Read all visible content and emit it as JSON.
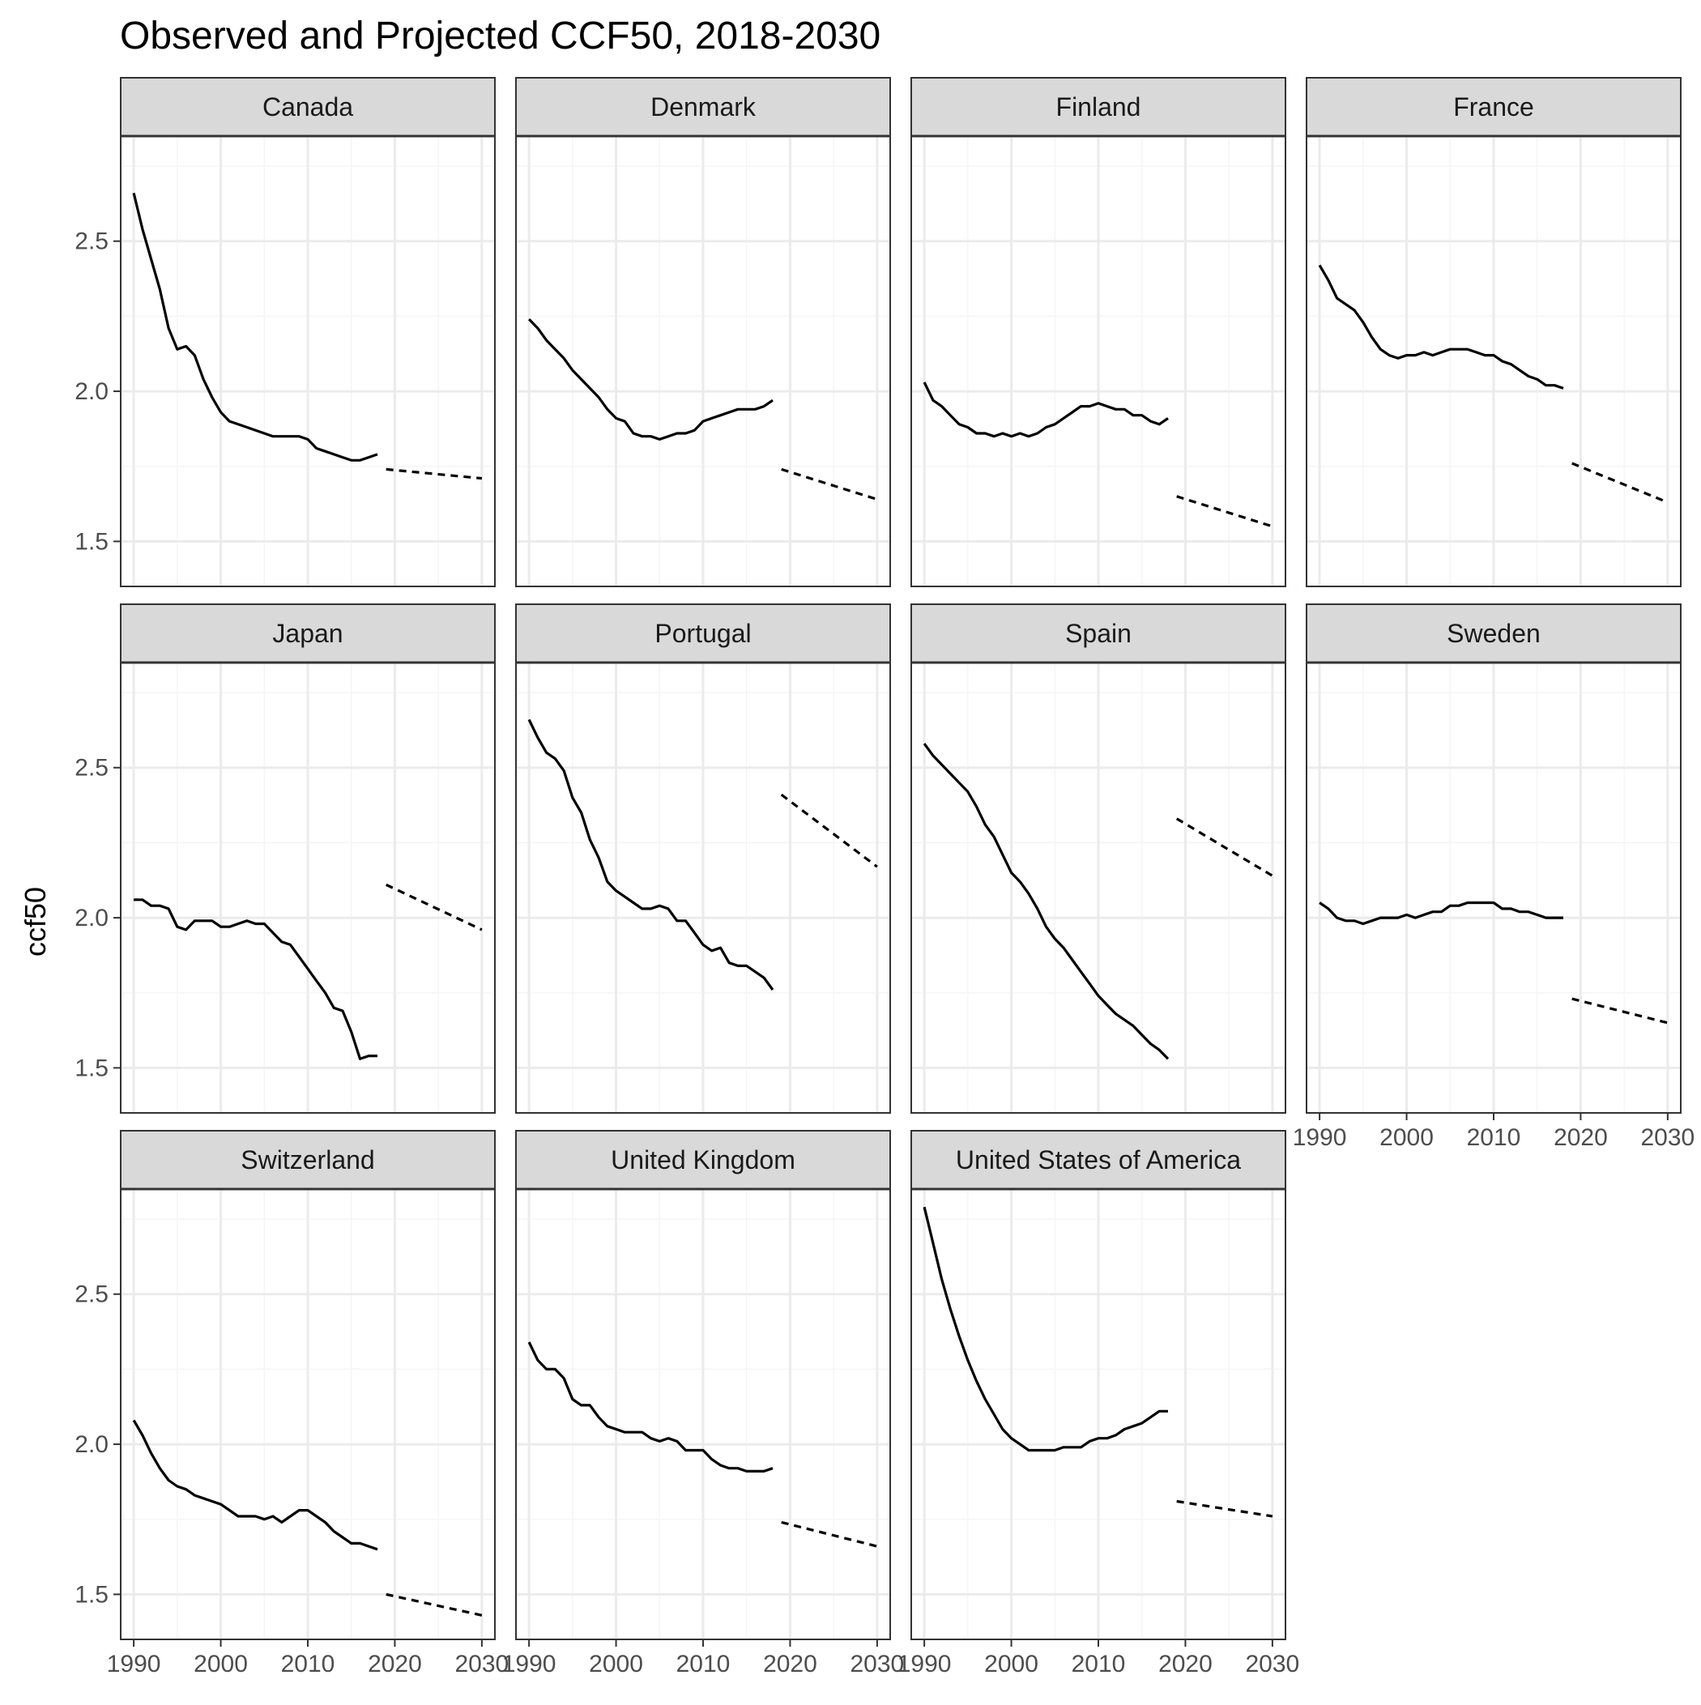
{
  "chart_data": {
    "type": "line",
    "title": "Observed and Projected CCF50, 2018-2030",
    "xlabel": "",
    "ylabel": "ccf50",
    "xlim": [
      1988.5,
      2031.5
    ],
    "ylim": [
      1.35,
      2.85
    ],
    "x_ticks": [
      1990,
      2000,
      2010,
      2020,
      2030
    ],
    "x_tick_labels": [
      "1990",
      "2000",
      "2010",
      "2020",
      "2030"
    ],
    "y_ticks": [
      1.5,
      2.0,
      2.5
    ],
    "y_tick_labels": [
      "1.5",
      "2.0",
      "2.5"
    ],
    "grid": true,
    "facet_layout": {
      "columns": 4,
      "rows": 3
    },
    "series_styles": {
      "observed": "solid",
      "projected": "dashed"
    },
    "colors": {
      "line": "#000000",
      "strip_fill": "#d9d9d9",
      "panel_border": "#333333",
      "grid_major": "#ebebeb",
      "grid_minor": "#f5f5f5"
    },
    "panels": [
      {
        "name": "Canada",
        "observed": {
          "x": [
            1990,
            1991,
            1992,
            1993,
            1994,
            1995,
            1996,
            1997,
            1998,
            1999,
            2000,
            2001,
            2002,
            2003,
            2004,
            2005,
            2006,
            2007,
            2008,
            2009,
            2010,
            2011,
            2012,
            2013,
            2014,
            2015,
            2016,
            2017,
            2018
          ],
          "y": [
            2.66,
            2.54,
            2.44,
            2.34,
            2.21,
            2.14,
            2.15,
            2.12,
            2.04,
            1.98,
            1.93,
            1.9,
            1.89,
            1.88,
            1.87,
            1.86,
            1.85,
            1.85,
            1.85,
            1.85,
            1.84,
            1.81,
            1.8,
            1.79,
            1.78,
            1.77,
            1.77,
            1.78,
            1.79
          ]
        },
        "projected": {
          "x": [
            2019,
            2030
          ],
          "y": [
            1.74,
            1.71
          ]
        }
      },
      {
        "name": "Denmark",
        "observed": {
          "x": [
            1990,
            1991,
            1992,
            1993,
            1994,
            1995,
            1996,
            1997,
            1998,
            1999,
            2000,
            2001,
            2002,
            2003,
            2004,
            2005,
            2006,
            2007,
            2008,
            2009,
            2010,
            2011,
            2012,
            2013,
            2014,
            2015,
            2016,
            2017,
            2018
          ],
          "y": [
            2.24,
            2.21,
            2.17,
            2.14,
            2.11,
            2.07,
            2.04,
            2.01,
            1.98,
            1.94,
            1.91,
            1.9,
            1.86,
            1.85,
            1.85,
            1.84,
            1.85,
            1.86,
            1.86,
            1.87,
            1.9,
            1.91,
            1.92,
            1.93,
            1.94,
            1.94,
            1.94,
            1.95,
            1.97
          ]
        },
        "projected": {
          "x": [
            2019,
            2030
          ],
          "y": [
            1.74,
            1.64
          ]
        }
      },
      {
        "name": "Finland",
        "observed": {
          "x": [
            1990,
            1991,
            1992,
            1993,
            1994,
            1995,
            1996,
            1997,
            1998,
            1999,
            2000,
            2001,
            2002,
            2003,
            2004,
            2005,
            2006,
            2007,
            2008,
            2009,
            2010,
            2011,
            2012,
            2013,
            2014,
            2015,
            2016,
            2017,
            2018
          ],
          "y": [
            2.03,
            1.97,
            1.95,
            1.92,
            1.89,
            1.88,
            1.86,
            1.86,
            1.85,
            1.86,
            1.85,
            1.86,
            1.85,
            1.86,
            1.88,
            1.89,
            1.91,
            1.93,
            1.95,
            1.95,
            1.96,
            1.95,
            1.94,
            1.94,
            1.92,
            1.92,
            1.9,
            1.89,
            1.91
          ]
        },
        "projected": {
          "x": [
            2019,
            2030
          ],
          "y": [
            1.65,
            1.55
          ]
        }
      },
      {
        "name": "France",
        "observed": {
          "x": [
            1990,
            1991,
            1992,
            1993,
            1994,
            1995,
            1996,
            1997,
            1998,
            1999,
            2000,
            2001,
            2002,
            2003,
            2004,
            2005,
            2006,
            2007,
            2008,
            2009,
            2010,
            2011,
            2012,
            2013,
            2014,
            2015,
            2016,
            2017,
            2018
          ],
          "y": [
            2.42,
            2.37,
            2.31,
            2.29,
            2.27,
            2.23,
            2.18,
            2.14,
            2.12,
            2.11,
            2.12,
            2.12,
            2.13,
            2.12,
            2.13,
            2.14,
            2.14,
            2.14,
            2.13,
            2.12,
            2.12,
            2.1,
            2.09,
            2.07,
            2.05,
            2.04,
            2.02,
            2.02,
            2.01
          ]
        },
        "projected": {
          "x": [
            2019,
            2030
          ],
          "y": [
            1.76,
            1.63
          ]
        }
      },
      {
        "name": "Japan",
        "observed": {
          "x": [
            1990,
            1991,
            1992,
            1993,
            1994,
            1995,
            1996,
            1997,
            1998,
            1999,
            2000,
            2001,
            2002,
            2003,
            2004,
            2005,
            2006,
            2007,
            2008,
            2009,
            2010,
            2011,
            2012,
            2013,
            2014,
            2015,
            2016,
            2017,
            2018
          ],
          "y": [
            2.06,
            2.06,
            2.04,
            2.04,
            2.03,
            1.97,
            1.96,
            1.99,
            1.99,
            1.99,
            1.97,
            1.97,
            1.98,
            1.99,
            1.98,
            1.98,
            1.95,
            1.92,
            1.91,
            1.87,
            1.83,
            1.79,
            1.75,
            1.7,
            1.69,
            1.62,
            1.53,
            1.54,
            1.54
          ]
        },
        "projected": {
          "x": [
            2019,
            2030
          ],
          "y": [
            2.11,
            1.96
          ]
        }
      },
      {
        "name": "Portugal",
        "observed": {
          "x": [
            1990,
            1991,
            1992,
            1993,
            1994,
            1995,
            1996,
            1997,
            1998,
            1999,
            2000,
            2001,
            2002,
            2003,
            2004,
            2005,
            2006,
            2007,
            2008,
            2009,
            2010,
            2011,
            2012,
            2013,
            2014,
            2015,
            2016,
            2017,
            2018
          ],
          "y": [
            2.66,
            2.6,
            2.55,
            2.53,
            2.49,
            2.4,
            2.35,
            2.26,
            2.2,
            2.12,
            2.09,
            2.07,
            2.05,
            2.03,
            2.03,
            2.04,
            2.03,
            1.99,
            1.99,
            1.95,
            1.91,
            1.89,
            1.9,
            1.85,
            1.84,
            1.84,
            1.82,
            1.8,
            1.76
          ]
        },
        "projected": {
          "x": [
            2019,
            2030
          ],
          "y": [
            2.41,
            2.17
          ]
        }
      },
      {
        "name": "Spain",
        "observed": {
          "x": [
            1990,
            1991,
            1992,
            1993,
            1994,
            1995,
            1996,
            1997,
            1998,
            1999,
            2000,
            2001,
            2002,
            2003,
            2004,
            2005,
            2006,
            2007,
            2008,
            2009,
            2010,
            2011,
            2012,
            2013,
            2014,
            2015,
            2016,
            2017,
            2018
          ],
          "y": [
            2.58,
            2.54,
            2.51,
            2.48,
            2.45,
            2.42,
            2.37,
            2.31,
            2.27,
            2.21,
            2.15,
            2.12,
            2.08,
            2.03,
            1.97,
            1.93,
            1.9,
            1.86,
            1.82,
            1.78,
            1.74,
            1.71,
            1.68,
            1.66,
            1.64,
            1.61,
            1.58,
            1.56,
            1.53
          ]
        },
        "projected": {
          "x": [
            2019,
            2030
          ],
          "y": [
            2.33,
            2.14
          ]
        }
      },
      {
        "name": "Sweden",
        "observed": {
          "x": [
            1990,
            1991,
            1992,
            1993,
            1994,
            1995,
            1996,
            1997,
            1998,
            1999,
            2000,
            2001,
            2002,
            2003,
            2004,
            2005,
            2006,
            2007,
            2008,
            2009,
            2010,
            2011,
            2012,
            2013,
            2014,
            2015,
            2016,
            2017,
            2018
          ],
          "y": [
            2.05,
            2.03,
            2.0,
            1.99,
            1.99,
            1.98,
            1.99,
            2.0,
            2.0,
            2.0,
            2.01,
            2.0,
            2.01,
            2.02,
            2.02,
            2.04,
            2.04,
            2.05,
            2.05,
            2.05,
            2.05,
            2.03,
            2.03,
            2.02,
            2.02,
            2.01,
            2.0,
            2.0,
            2.0
          ]
        },
        "projected": {
          "x": [
            2019,
            2030
          ],
          "y": [
            1.73,
            1.65
          ]
        }
      },
      {
        "name": "Switzerland",
        "observed": {
          "x": [
            1990,
            1991,
            1992,
            1993,
            1994,
            1995,
            1996,
            1997,
            1998,
            1999,
            2000,
            2001,
            2002,
            2003,
            2004,
            2005,
            2006,
            2007,
            2008,
            2009,
            2010,
            2011,
            2012,
            2013,
            2014,
            2015,
            2016,
            2017,
            2018
          ],
          "y": [
            2.08,
            2.03,
            1.97,
            1.92,
            1.88,
            1.86,
            1.85,
            1.83,
            1.82,
            1.81,
            1.8,
            1.78,
            1.76,
            1.76,
            1.76,
            1.75,
            1.76,
            1.74,
            1.76,
            1.78,
            1.78,
            1.76,
            1.74,
            1.71,
            1.69,
            1.67,
            1.67,
            1.66,
            1.65
          ]
        },
        "projected": {
          "x": [
            2019,
            2030
          ],
          "y": [
            1.5,
            1.43
          ]
        }
      },
      {
        "name": "United Kingdom",
        "observed": {
          "x": [
            1990,
            1991,
            1992,
            1993,
            1994,
            1995,
            1996,
            1997,
            1998,
            1999,
            2000,
            2001,
            2002,
            2003,
            2004,
            2005,
            2006,
            2007,
            2008,
            2009,
            2010,
            2011,
            2012,
            2013,
            2014,
            2015,
            2016,
            2017,
            2018
          ],
          "y": [
            2.34,
            2.28,
            2.25,
            2.25,
            2.22,
            2.15,
            2.13,
            2.13,
            2.09,
            2.06,
            2.05,
            2.04,
            2.04,
            2.04,
            2.02,
            2.01,
            2.02,
            2.01,
            1.98,
            1.98,
            1.98,
            1.95,
            1.93,
            1.92,
            1.92,
            1.91,
            1.91,
            1.91,
            1.92
          ]
        },
        "projected": {
          "x": [
            2019,
            2030
          ],
          "y": [
            1.74,
            1.66
          ]
        }
      },
      {
        "name": "United States of America",
        "observed": {
          "x": [
            1990,
            1991,
            1992,
            1993,
            1994,
            1995,
            1996,
            1997,
            1998,
            1999,
            2000,
            2001,
            2002,
            2003,
            2004,
            2005,
            2006,
            2007,
            2008,
            2009,
            2010,
            2011,
            2012,
            2013,
            2014,
            2015,
            2016,
            2017,
            2018
          ],
          "y": [
            2.79,
            2.67,
            2.55,
            2.45,
            2.36,
            2.28,
            2.21,
            2.15,
            2.1,
            2.05,
            2.02,
            2.0,
            1.98,
            1.98,
            1.98,
            1.98,
            1.99,
            1.99,
            1.99,
            2.01,
            2.02,
            2.02,
            2.03,
            2.05,
            2.06,
            2.07,
            2.09,
            2.11,
            2.11
          ]
        },
        "projected": {
          "x": [
            2019,
            2030
          ],
          "y": [
            1.81,
            1.76
          ]
        }
      }
    ]
  }
}
